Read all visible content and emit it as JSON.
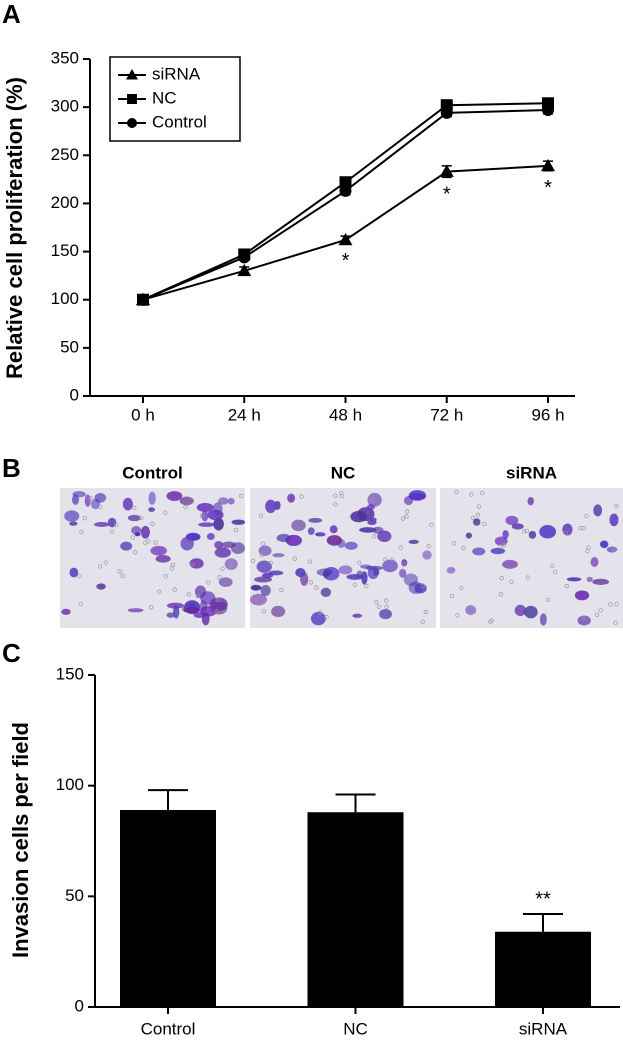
{
  "chart_data": [
    {
      "type": "line",
      "panel": "A",
      "y_label": "Relative cell proliferation (%)",
      "categories": [
        "0 h",
        "24 h",
        "48 h",
        "72 h",
        "96 h"
      ],
      "ylim": [
        0,
        350
      ],
      "yticks": [
        0,
        50,
        100,
        150,
        200,
        250,
        300,
        350
      ],
      "legend": "top-left",
      "series": [
        {
          "name": "siRNA",
          "color": "#000000",
          "marker": "triangle",
          "values": [
            100,
            130,
            162,
            233,
            239
          ],
          "errors": [
            2,
            4,
            4,
            6,
            5
          ]
        },
        {
          "name": "NC",
          "color": "#000000",
          "marker": "square",
          "values": [
            100,
            147,
            222,
            302,
            304
          ],
          "errors": [
            2,
            3,
            4,
            3,
            3
          ]
        },
        {
          "name": "Control",
          "color": "#000000",
          "marker": "circle",
          "values": [
            100,
            144,
            213,
            294,
            297
          ],
          "errors": [
            2,
            3,
            4,
            4,
            4
          ]
        }
      ],
      "annotations": [
        {
          "text": "*",
          "category": "48 h",
          "series": "siRNA"
        },
        {
          "text": "*",
          "category": "72 h",
          "series": "siRNA"
        },
        {
          "text": "*",
          "category": "96 h",
          "series": "siRNA"
        }
      ]
    },
    {
      "type": "bar",
      "panel": "C",
      "y_label": "Invasion cells per field",
      "categories": [
        "Control",
        "NC",
        "siRNA"
      ],
      "values": [
        89,
        88,
        34
      ],
      "errors": [
        9,
        8,
        8
      ],
      "color": "#000000",
      "ylim": [
        0,
        150
      ],
      "yticks": [
        0,
        50,
        100,
        150
      ],
      "annotations": [
        {
          "text": "**",
          "category": "siRNA"
        }
      ]
    }
  ],
  "panel_b": {
    "panel": "B",
    "images": [
      "Control",
      "NC",
      "siRNA"
    ]
  }
}
